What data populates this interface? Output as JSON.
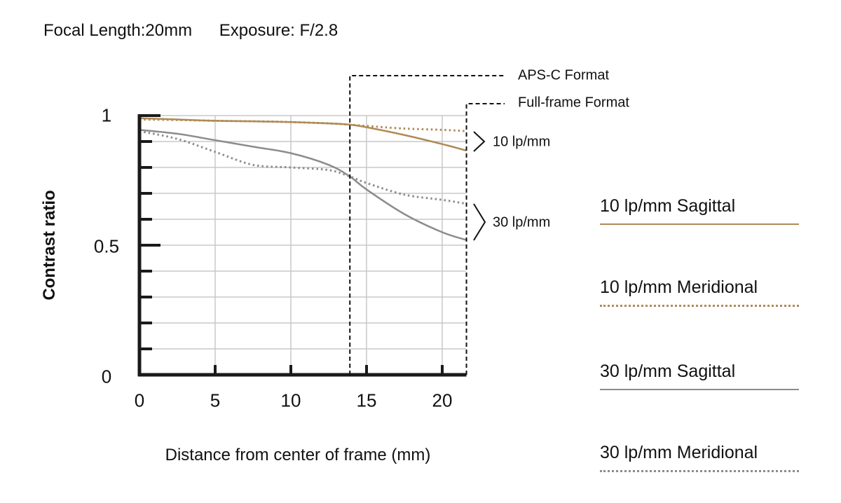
{
  "header": {
    "focal_length": "Focal Length:20mm",
    "exposure": "Exposure: F/2.8"
  },
  "axes": {
    "ylabel": "Contrast ratio",
    "xlabel": "Distance from center of frame (mm)",
    "yticks": [
      "1",
      "0.5",
      "0"
    ],
    "xticks": [
      "0",
      "5",
      "10",
      "15",
      "20"
    ]
  },
  "formats": {
    "apsc": "APS-C Format",
    "fullframe": "Full-frame Format"
  },
  "brackets": {
    "lp10": "10 lp/mm",
    "lp30": "30 lp/mm"
  },
  "legend": [
    {
      "label": "10 lp/mm Sagittal",
      "color": "#b08a55",
      "style": "solid"
    },
    {
      "label": "10 lp/mm Meridional",
      "color": "#b08a55",
      "style": "dotted"
    },
    {
      "label": "30 lp/mm Sagittal",
      "color": "#8c8c8c",
      "style": "solid"
    },
    {
      "label": "30 lp/mm Meridional",
      "color": "#8c8c8c",
      "style": "dotted"
    }
  ],
  "chart_data": {
    "type": "line",
    "title": "Focal Length:20mm  Exposure: F/2.8",
    "xlabel": "Distance from center of frame (mm)",
    "ylabel": "Contrast ratio",
    "xlim": [
      0,
      21.6
    ],
    "ylim": [
      0,
      1
    ],
    "grid": true,
    "legend_position": "right",
    "x": [
      0,
      2.5,
      5,
      7.5,
      10,
      12.5,
      13.9,
      15,
      17.5,
      20,
      21.6
    ],
    "series": [
      {
        "name": "10 lp/mm Sagittal",
        "color": "#b08a55",
        "style": "solid",
        "values": [
          0.99,
          0.985,
          0.98,
          0.978,
          0.975,
          0.97,
          0.965,
          0.955,
          0.925,
          0.89,
          0.865
        ]
      },
      {
        "name": "10 lp/mm Meridional",
        "color": "#b08a55",
        "style": "dotted",
        "values": [
          0.985,
          0.983,
          0.98,
          0.978,
          0.975,
          0.97,
          0.965,
          0.96,
          0.95,
          0.945,
          0.94
        ]
      },
      {
        "name": "30 lp/mm Sagittal",
        "color": "#8c8c8c",
        "style": "solid",
        "values": [
          0.945,
          0.93,
          0.905,
          0.88,
          0.855,
          0.81,
          0.765,
          0.715,
          0.62,
          0.55,
          0.52
        ]
      },
      {
        "name": "30 lp/mm Meridional",
        "color": "#8c8c8c",
        "style": "dotted",
        "values": [
          0.94,
          0.91,
          0.86,
          0.81,
          0.8,
          0.79,
          0.765,
          0.74,
          0.695,
          0.675,
          0.66
        ]
      }
    ],
    "annotations": [
      {
        "text": "APS-C Format",
        "x": 13.9
      },
      {
        "text": "Full-frame Format",
        "x": 21.6
      },
      {
        "text": "10 lp/mm",
        "group": "10 lp/mm curves"
      },
      {
        "text": "30 lp/mm",
        "group": "30 lp/mm curves"
      }
    ]
  }
}
